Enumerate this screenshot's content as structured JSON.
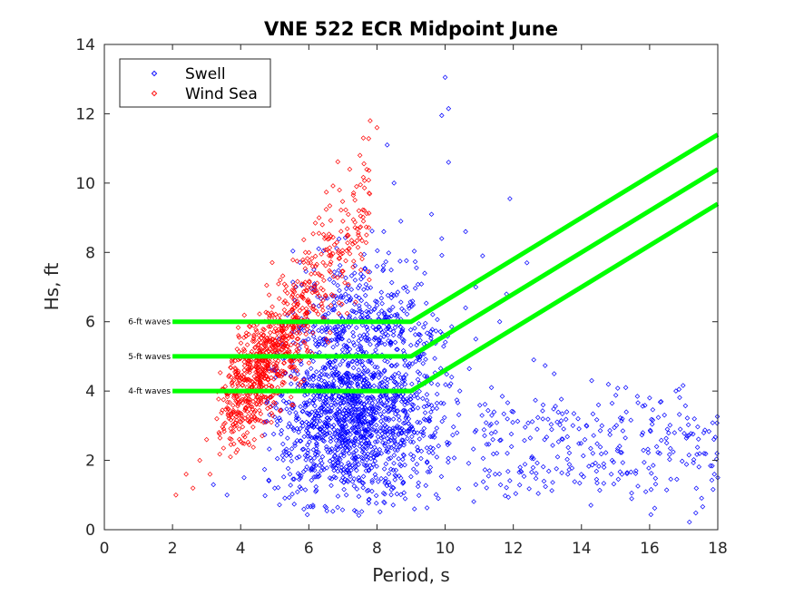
{
  "chart_data": {
    "type": "scatter",
    "title": "VNE 522 ECR Midpoint June",
    "xlabel": "Period, s",
    "ylabel": "Hs, ft",
    "xlim": [
      0,
      18
    ],
    "ylim": [
      0,
      14
    ],
    "xticks": [
      "0",
      "2",
      "4",
      "6",
      "8",
      "10",
      "12",
      "14",
      "16",
      "18"
    ],
    "yticks": [
      "0",
      "2",
      "4",
      "6",
      "8",
      "10",
      "12",
      "14"
    ],
    "grid": false,
    "legend_position": "top-left",
    "series": [
      {
        "name": "Swell",
        "color": "#0000ff",
        "marker": "diamond",
        "points": [
          [
            10.0,
            13.05
          ],
          [
            10.1,
            12.15
          ],
          [
            9.9,
            11.95
          ],
          [
            8.3,
            11.1
          ],
          [
            10.1,
            10.6
          ],
          [
            8.5,
            10.0
          ],
          [
            11.9,
            9.55
          ],
          [
            9.6,
            9.1
          ],
          [
            8.7,
            8.9
          ],
          [
            8.2,
            8.6
          ],
          [
            9.9,
            8.4
          ],
          [
            10.6,
            8.6
          ],
          [
            11.1,
            7.9
          ],
          [
            10.9,
            7.0
          ],
          [
            9.4,
            7.4
          ],
          [
            8.0,
            7.6
          ],
          [
            7.6,
            7.3
          ],
          [
            12.4,
            7.7
          ],
          [
            11.8,
            6.8
          ],
          [
            10.6,
            6.4
          ],
          [
            11.6,
            6.0
          ],
          [
            10.9,
            5.5
          ],
          [
            12.6,
            4.9
          ],
          [
            13.2,
            4.5
          ],
          [
            14.3,
            4.3
          ],
          [
            15.3,
            4.1
          ],
          [
            16.0,
            3.8
          ],
          [
            13.9,
            3.2
          ],
          [
            14.6,
            3.0
          ],
          [
            15.8,
            2.8
          ],
          [
            16.9,
            2.9
          ],
          [
            17.6,
            2.2
          ],
          [
            17.9,
            1.6
          ],
          [
            18.0,
            1.5
          ],
          [
            16.5,
            2.5
          ],
          [
            14.9,
            2.0
          ],
          [
            13.6,
            1.6
          ],
          [
            12.9,
            1.4
          ],
          [
            12.2,
            1.8
          ],
          [
            11.3,
            1.7
          ],
          [
            10.9,
            1.3
          ],
          [
            9.8,
            0.9
          ],
          [
            9.1,
            0.6
          ],
          [
            8.2,
            0.8
          ],
          [
            7.1,
            1.0
          ],
          [
            6.2,
            1.1
          ],
          [
            5.0,
            1.2
          ],
          [
            4.1,
            1.5
          ],
          [
            3.6,
            1.0
          ],
          [
            3.2,
            1.3
          ],
          [
            15.2,
            3.2
          ],
          [
            14.1,
            2.6
          ],
          [
            13.3,
            2.1
          ],
          [
            12.7,
            2.9
          ],
          [
            12.0,
            3.4
          ],
          [
            11.4,
            2.6
          ],
          [
            16.3,
            2.2
          ],
          [
            17.1,
            2.7
          ],
          [
            15.6,
            1.7
          ],
          [
            14.5,
            3.6
          ]
        ],
        "cluster_note": "dense cloud of swell points between Period 5-11 s and Hs 1-7 ft"
      },
      {
        "name": "Wind Sea",
        "color": "#ff0000",
        "marker": "diamond",
        "points": [
          [
            7.8,
            11.8
          ],
          [
            8.0,
            11.6
          ],
          [
            7.6,
            11.3
          ],
          [
            7.5,
            10.8
          ],
          [
            7.2,
            10.4
          ],
          [
            6.9,
            9.8
          ],
          [
            7.4,
            9.9
          ],
          [
            6.3,
            9.0
          ],
          [
            6.6,
            8.4
          ],
          [
            7.0,
            8.9
          ],
          [
            5.9,
            8.0
          ],
          [
            6.2,
            7.6
          ],
          [
            5.6,
            7.0
          ],
          [
            5.3,
            6.6
          ],
          [
            5.0,
            6.1
          ],
          [
            4.6,
            5.4
          ],
          [
            4.3,
            4.9
          ],
          [
            4.0,
            4.4
          ],
          [
            3.6,
            3.9
          ],
          [
            3.3,
            3.2
          ],
          [
            3.0,
            2.6
          ],
          [
            2.8,
            2.0
          ],
          [
            2.4,
            1.6
          ],
          [
            2.1,
            1.0
          ],
          [
            2.6,
            1.2
          ],
          [
            3.1,
            1.6
          ],
          [
            3.7,
            2.1
          ],
          [
            4.4,
            2.6
          ],
          [
            4.9,
            3.1
          ],
          [
            5.5,
            3.6
          ]
        ],
        "cluster_note": "dense band of wind sea points along the left edge from Period 2-8 s, Hs 1-12 ft"
      }
    ],
    "threshold_lines": [
      {
        "label": "6-ft waves",
        "color": "#00ff00",
        "points": [
          [
            2,
            6.0
          ],
          [
            9,
            6.0
          ],
          [
            18,
            11.4
          ]
        ]
      },
      {
        "label": "5-ft waves",
        "color": "#00ff00",
        "points": [
          [
            2,
            5.0
          ],
          [
            9,
            5.0
          ],
          [
            18,
            10.4
          ]
        ]
      },
      {
        "label": "4-ft waves",
        "color": "#00ff00",
        "points": [
          [
            2,
            4.0
          ],
          [
            9,
            4.0
          ],
          [
            18,
            9.4
          ]
        ]
      }
    ]
  }
}
